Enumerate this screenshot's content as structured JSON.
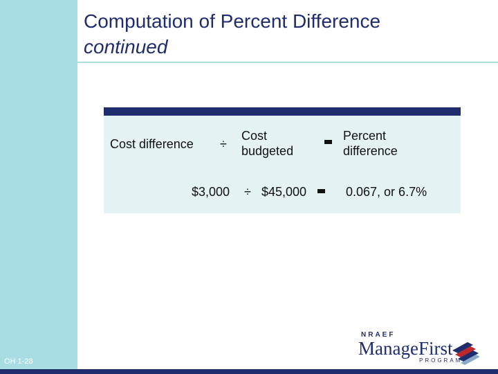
{
  "header": {
    "title_line1": "Computation of Percent Difference",
    "title_line2": "continued"
  },
  "formula": {
    "term1": "Cost difference",
    "divide_symbol": "÷",
    "term2_line1": "Cost",
    "term2_line2": "budgeted",
    "result_line1": "Percent",
    "result_line2": "difference"
  },
  "example": {
    "value1": "$3,000",
    "divide_symbol": "÷",
    "value2": "$45,000",
    "result": "0.067, or 6.7%"
  },
  "footer": {
    "slide_number": "OH 1-28"
  },
  "logo": {
    "org": "NRAEF",
    "name": "ManageFirst",
    "program": "PROGRAM™"
  },
  "colors": {
    "navy": "#1f2d6e",
    "light_blue": "#a9dde4",
    "panel_bg": "#e4f2f4",
    "logo_red": "#c0272d"
  }
}
